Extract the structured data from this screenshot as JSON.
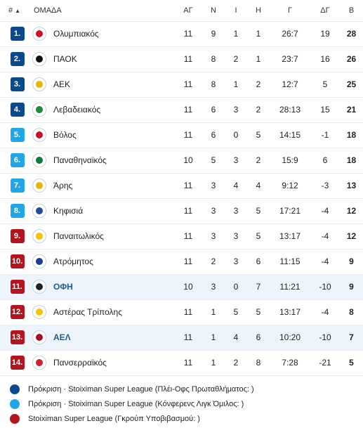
{
  "header": {
    "pos": "#",
    "team": "ΟΜΑΔΑ",
    "played": "ΑΓ",
    "wins": "Ν",
    "draws": "Ι",
    "losses": "Η",
    "goals": "Γ",
    "goal_diff": "ΔΓ",
    "points": "Β"
  },
  "colors": {
    "champions": "#0a4a8c",
    "conference": "#1ea6e6",
    "relegation": "#b3141d"
  },
  "rows": [
    {
      "pos": "1.",
      "team": "Ολυμπιακός",
      "played": "11",
      "wins": "9",
      "draws": "1",
      "losses": "1",
      "goals": "26:7",
      "goal_diff": "19",
      "points": "28",
      "zone": "champions",
      "logo_color": "#d0112b",
      "highlight": false
    },
    {
      "pos": "2.",
      "team": "ΠΑΟΚ",
      "played": "11",
      "wins": "8",
      "draws": "2",
      "losses": "1",
      "goals": "23:7",
      "goal_diff": "16",
      "points": "26",
      "zone": "champions",
      "logo_color": "#111111",
      "highlight": false
    },
    {
      "pos": "3.",
      "team": "ΑΕΚ",
      "played": "11",
      "wins": "8",
      "draws": "1",
      "losses": "2",
      "goals": "12:7",
      "goal_diff": "5",
      "points": "25",
      "zone": "champions",
      "logo_color": "#e8b800",
      "highlight": false
    },
    {
      "pos": "4.",
      "team": "Λεβαδειακός",
      "played": "11",
      "wins": "6",
      "draws": "3",
      "losses": "2",
      "goals": "28:13",
      "goal_diff": "15",
      "points": "21",
      "zone": "champions",
      "logo_color": "#1e8b3a",
      "highlight": false
    },
    {
      "pos": "5.",
      "team": "Βόλος",
      "played": "11",
      "wins": "6",
      "draws": "0",
      "losses": "5",
      "goals": "14:15",
      "goal_diff": "-1",
      "points": "18",
      "zone": "conference",
      "logo_color": "#c8102e",
      "highlight": false
    },
    {
      "pos": "6.",
      "team": "Παναθηναϊκός",
      "played": "10",
      "wins": "5",
      "draws": "3",
      "losses": "2",
      "goals": "15:9",
      "goal_diff": "6",
      "points": "18",
      "zone": "conference",
      "logo_color": "#0b7a3a",
      "highlight": false
    },
    {
      "pos": "7.",
      "team": "Άρης",
      "played": "11",
      "wins": "3",
      "draws": "4",
      "losses": "4",
      "goals": "9:12",
      "goal_diff": "-3",
      "points": "13",
      "zone": "conference",
      "logo_color": "#e6b400",
      "highlight": false
    },
    {
      "pos": "8.",
      "team": "Κηφισιά",
      "played": "11",
      "wins": "3",
      "draws": "3",
      "losses": "5",
      "goals": "17:21",
      "goal_diff": "-4",
      "points": "12",
      "zone": "conference",
      "logo_color": "#1d4f9c",
      "highlight": false
    },
    {
      "pos": "9.",
      "team": "Παναιτωλικός",
      "played": "11",
      "wins": "3",
      "draws": "3",
      "losses": "5",
      "goals": "13:17",
      "goal_diff": "-4",
      "points": "12",
      "zone": "relegation",
      "logo_color": "#f2c200",
      "highlight": false
    },
    {
      "pos": "10.",
      "team": "Ατρόμητος",
      "played": "11",
      "wins": "2",
      "draws": "3",
      "losses": "6",
      "goals": "11:15",
      "goal_diff": "-4",
      "points": "9",
      "zone": "relegation",
      "logo_color": "#1a3f8f",
      "highlight": false
    },
    {
      "pos": "11.",
      "team": "ΟΦΗ",
      "played": "10",
      "wins": "3",
      "draws": "0",
      "losses": "7",
      "goals": "11:21",
      "goal_diff": "-10",
      "points": "9",
      "zone": "relegation",
      "logo_color": "#222222",
      "highlight": true
    },
    {
      "pos": "12.",
      "team": "Αστέρας Τρίπολης",
      "played": "11",
      "wins": "1",
      "draws": "5",
      "losses": "5",
      "goals": "13:17",
      "goal_diff": "-4",
      "points": "8",
      "zone": "relegation",
      "logo_color": "#f0c400",
      "highlight": false
    },
    {
      "pos": "13.",
      "team": "ΑΕΛ",
      "played": "11",
      "wins": "1",
      "draws": "4",
      "losses": "6",
      "goals": "10:20",
      "goal_diff": "-10",
      "points": "7",
      "zone": "relegation",
      "logo_color": "#a0102a",
      "highlight": true
    },
    {
      "pos": "14.",
      "team": "Πανσερραϊκός",
      "played": "11",
      "wins": "1",
      "draws": "2",
      "losses": "8",
      "goals": "7:28",
      "goal_diff": "-21",
      "points": "5",
      "zone": "relegation",
      "logo_color": "#d21f2b",
      "highlight": false
    }
  ],
  "legend": [
    {
      "label": "Πρόκριση · Stoiximan Super League (Πλέι-Οφς Πρωταθλήματος: )",
      "zone": "champions"
    },
    {
      "label": "Πρόκριση · Stoiximan Super League (Κόνφερενς Λιγκ Όμιλος: )",
      "zone": "conference"
    },
    {
      "label": "Stoiximan Super League (Γκρούπ Υποβιβασμού: )",
      "zone": "relegation"
    }
  ]
}
